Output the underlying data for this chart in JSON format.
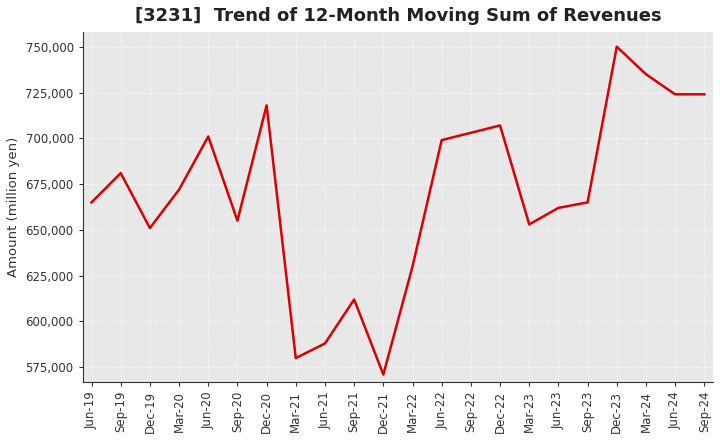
{
  "title": "[3231]  Trend of 12-Month Moving Sum of Revenues",
  "ylabel": "Amount (million yen)",
  "line_color": "#dd0000",
  "line_width": 1.8,
  "plot_bg_color": "#e8e8e8",
  "fig_bg_color": "#ffffff",
  "grid_color": "#ffffff",
  "ylim": [
    567000,
    758000
  ],
  "yticks": [
    575000,
    600000,
    625000,
    650000,
    675000,
    700000,
    725000,
    750000
  ],
  "x_labels": [
    "Jun-19",
    "Sep-19",
    "Dec-19",
    "Mar-20",
    "Jun-20",
    "Sep-20",
    "Dec-20",
    "Mar-21",
    "Jun-21",
    "Sep-21",
    "Dec-21",
    "Mar-22",
    "Jun-22",
    "Sep-22",
    "Dec-22",
    "Mar-23",
    "Jun-23",
    "Sep-23",
    "Dec-23",
    "Mar-24",
    "Jun-24",
    "Sep-24"
  ],
  "values": [
    665000,
    681000,
    651000,
    672000,
    701000,
    655000,
    718000,
    580000,
    588000,
    612000,
    571000,
    630000,
    699000,
    703000,
    707000,
    653000,
    662000,
    665000,
    750000,
    735000,
    724000,
    724000
  ],
  "title_fontsize": 13,
  "tick_fontsize": 8.5,
  "ylabel_fontsize": 9.5
}
